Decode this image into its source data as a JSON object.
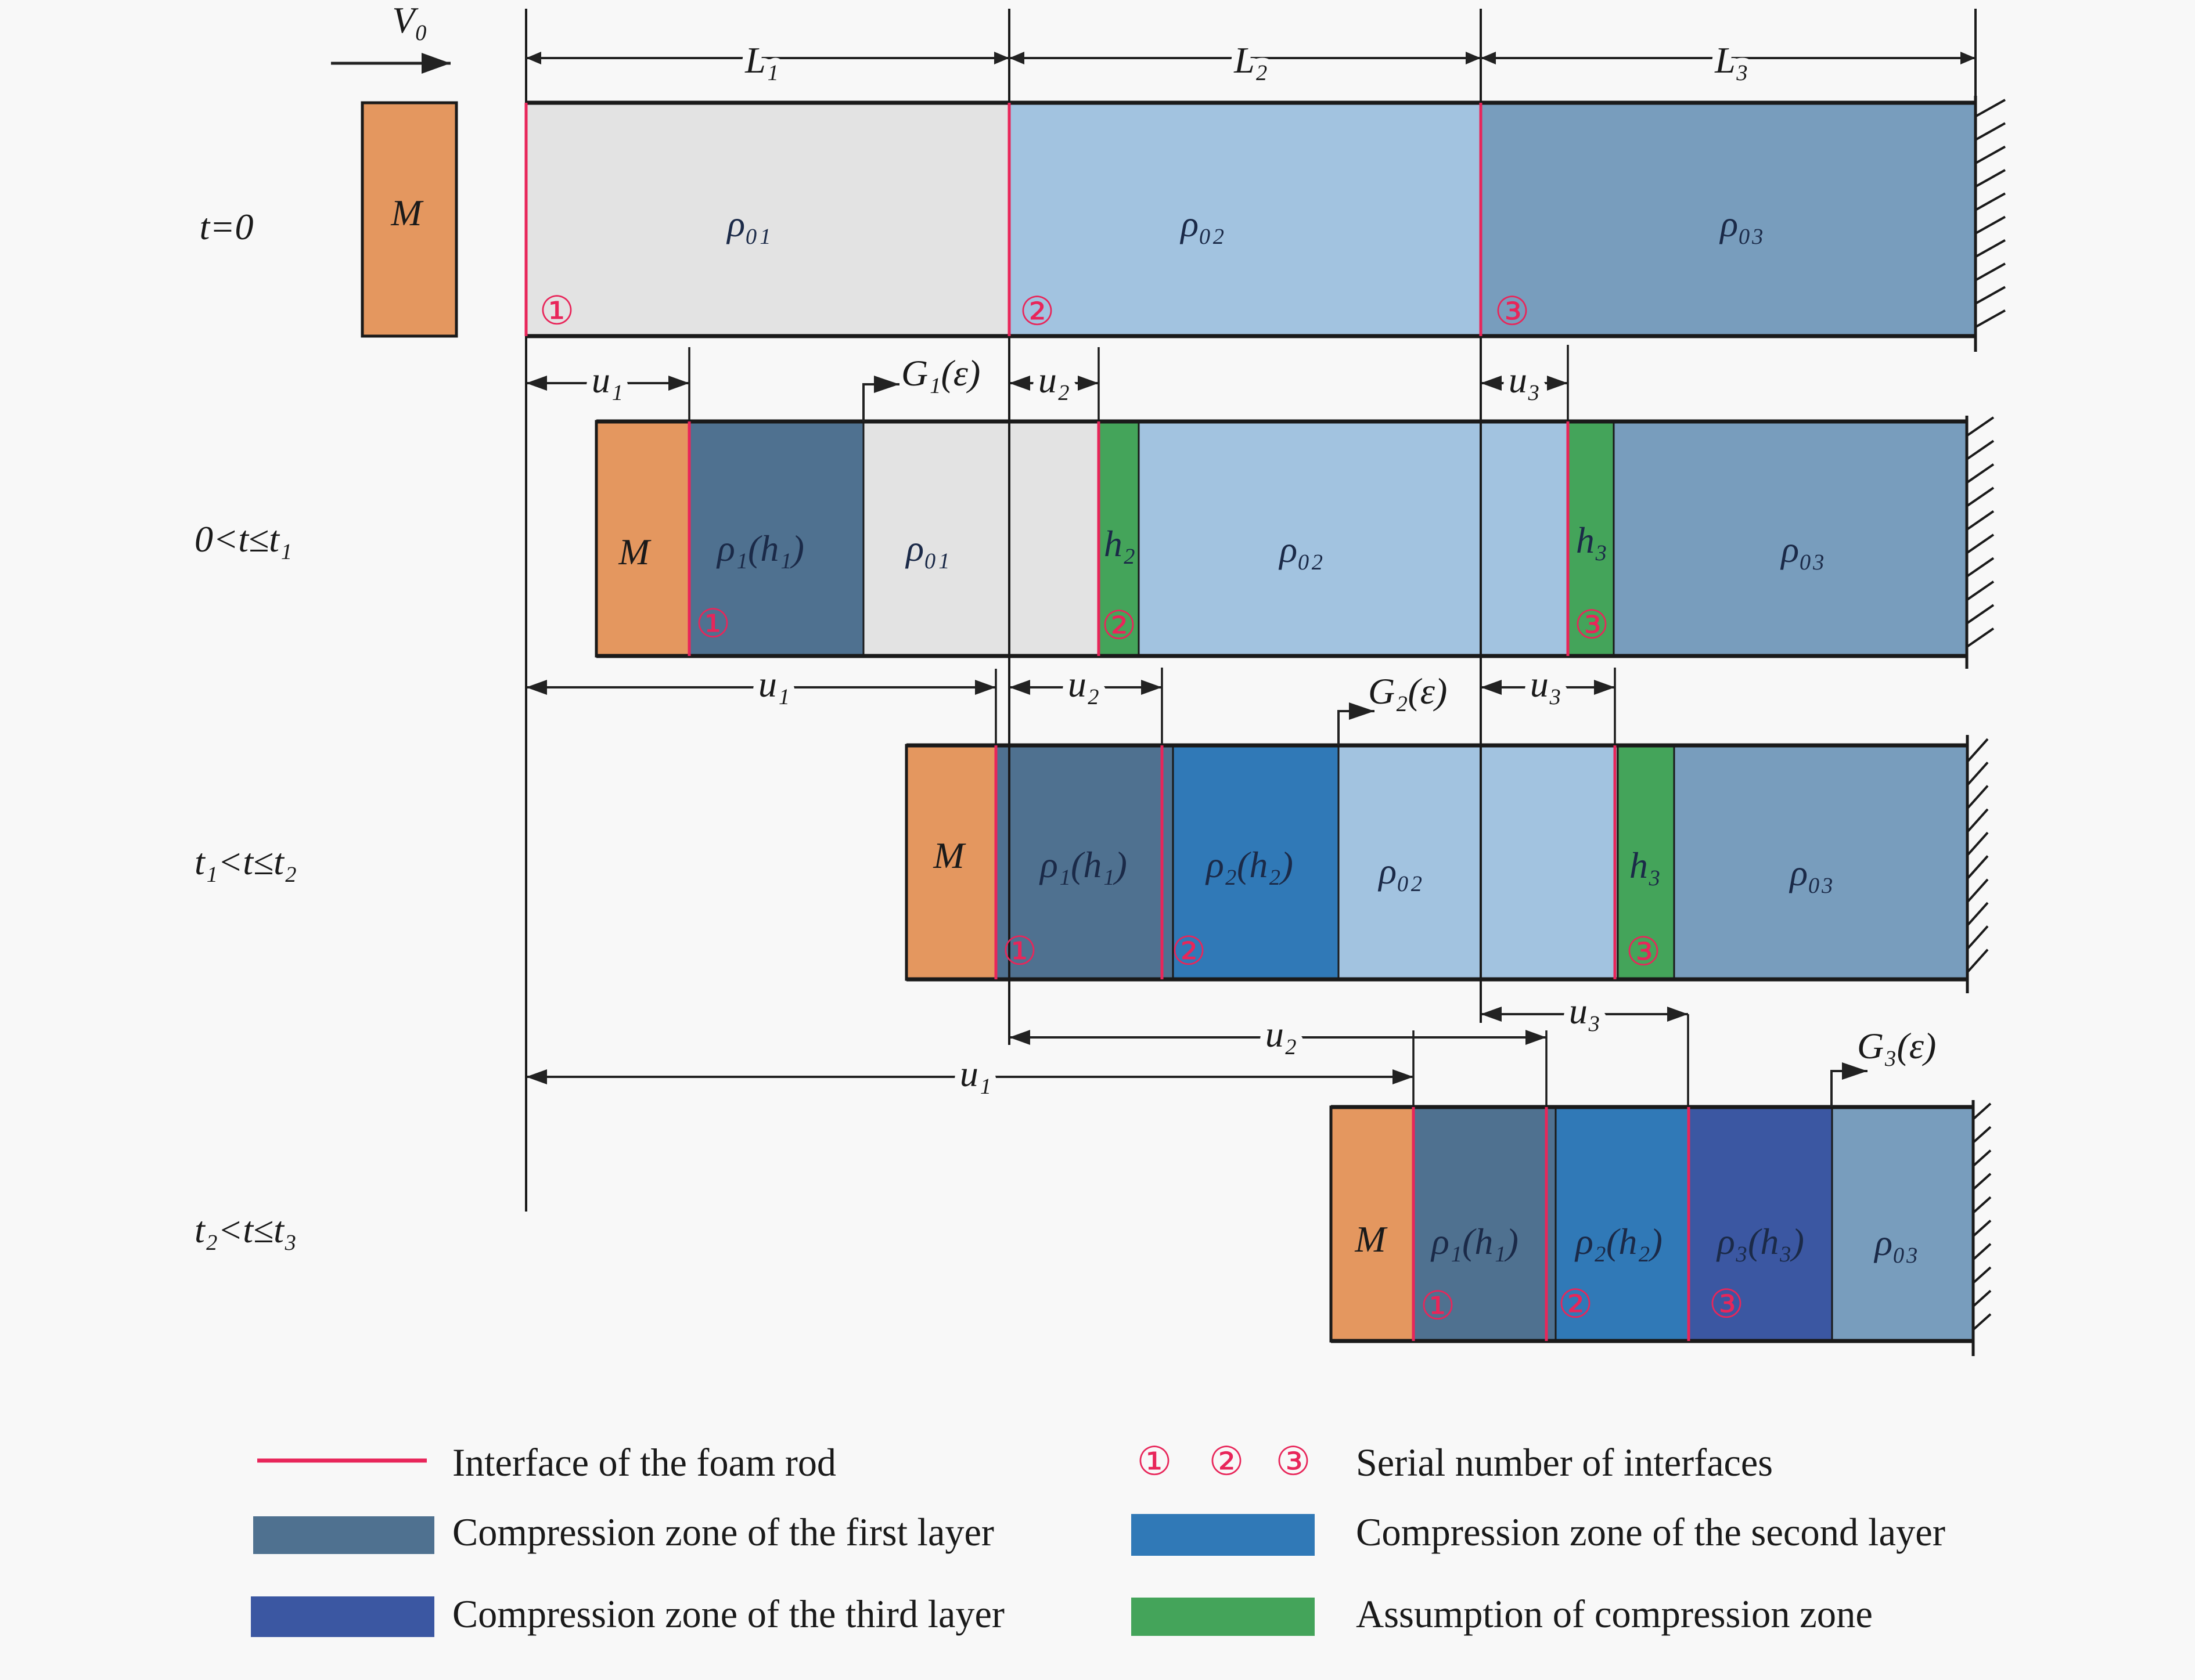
{
  "colors": {
    "background": "#f8f8f8",
    "mass": "#e4975f",
    "foam_layer_1": "#e3e3e3",
    "foam_layer_2": "#a2c3e0",
    "foam_layer_3": "#789dbd",
    "compression_layer_1": "#4f7190",
    "compression_layer_2": "#3079b7",
    "compression_layer_3": "#3b57a2",
    "assumed_compression": "#44a45a",
    "interface": "#e8265a"
  },
  "impact": {
    "velocity_label": "V₀"
  },
  "lengths": [
    "L₁",
    "L₂",
    "L₃"
  ],
  "stages": [
    {
      "time_label": "t=0",
      "mass_label": "M",
      "segments": [
        {
          "label": "ρ₀₁",
          "zone": "foam_layer_1"
        },
        {
          "label": "ρ₀₂",
          "zone": "foam_layer_2"
        },
        {
          "label": "ρ₀₃",
          "zone": "foam_layer_3"
        }
      ],
      "interfaces": [
        "①",
        "②",
        "③"
      ]
    },
    {
      "time_label": "0<t≤t₁",
      "mass_label": "M",
      "displacements": [
        "u₁",
        "u₂",
        "u₃"
      ],
      "wave_front": "G₁(ε)",
      "segments": [
        {
          "label": "ρ₁(h₁)",
          "zone": "compression_layer_1"
        },
        {
          "label": "ρ₀₁",
          "zone": "foam_layer_1"
        },
        {
          "label": "h₂",
          "zone": "assumed_compression"
        },
        {
          "label": "ρ₀₂",
          "zone": "foam_layer_2"
        },
        {
          "label": "h₃",
          "zone": "assumed_compression"
        },
        {
          "label": "ρ₀₃",
          "zone": "foam_layer_3"
        }
      ],
      "interfaces": [
        "①",
        "②",
        "③"
      ]
    },
    {
      "time_label": "t₁<t≤t₂",
      "mass_label": "M",
      "displacements": [
        "u₁",
        "u₂",
        "u₃"
      ],
      "wave_front": "G₂(ε)",
      "segments": [
        {
          "label": "ρ₁(h₁)",
          "zone": "compression_layer_1"
        },
        {
          "label": "ρ₂(h₂)",
          "zone": "compression_layer_2"
        },
        {
          "label": "ρ₀₂",
          "zone": "foam_layer_2"
        },
        {
          "label": "h₃",
          "zone": "assumed_compression"
        },
        {
          "label": "ρ₀₃",
          "zone": "foam_layer_3"
        }
      ],
      "interfaces": [
        "①",
        "②",
        "③"
      ]
    },
    {
      "time_label": "t₂<t≤t₃",
      "mass_label": "M",
      "displacements": [
        "u₁",
        "u₂",
        "u₃"
      ],
      "wave_front": "G₃(ε)",
      "segments": [
        {
          "label": "ρ₁(h₁)",
          "zone": "compression_layer_1"
        },
        {
          "label": "ρ₂(h₂)",
          "zone": "compression_layer_2"
        },
        {
          "label": "ρ₃(h₃)",
          "zone": "compression_layer_3"
        },
        {
          "label": "ρ₀₃",
          "zone": "foam_layer_3"
        }
      ],
      "interfaces": [
        "①",
        "②",
        "③"
      ]
    }
  ],
  "legend": {
    "interface": {
      "label": "Interface of the foam rod"
    },
    "serial_numbers": {
      "markers": [
        "①",
        "②",
        "③"
      ],
      "label": "Serial number of interfaces"
    },
    "compression_layer_1": {
      "label": "Compression zone of the first layer"
    },
    "compression_layer_2": {
      "label": "Compression zone of the second layer"
    },
    "compression_layer_3": {
      "label": "Compression zone of the third layer"
    },
    "assumed_compression": {
      "label": "Assumption of compression zone"
    }
  }
}
